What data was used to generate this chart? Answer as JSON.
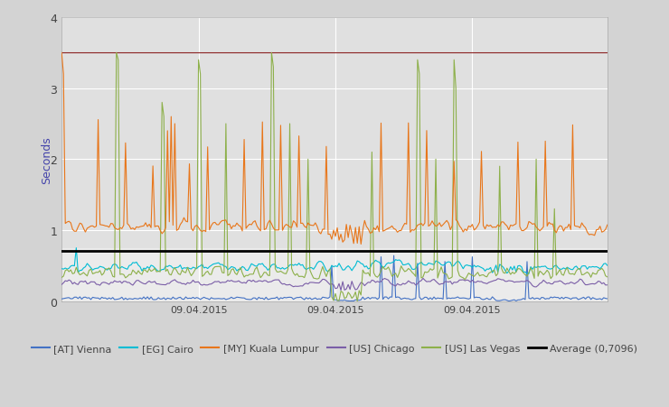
{
  "title": "",
  "ylabel": "Seconds",
  "ylim": [
    0,
    4
  ],
  "yticks": [
    0,
    1,
    2,
    3,
    4
  ],
  "average_value": 0.7096,
  "background_color": "#d3d3d3",
  "plot_bg_color_upper": "#e0e0e0",
  "plot_bg_color_lower": "#ebebeb",
  "upper_ref_color": "#8b2222",
  "series_colors": {
    "vienna": "#4472c4",
    "cairo": "#00bcd4",
    "kuala": "#e8761a",
    "chicago": "#7b5ea7",
    "vegas": "#8db04a",
    "average": "#000000"
  },
  "legend_labels": [
    "[AT] Vienna",
    "[EG] Cairo",
    "[MY] Kuala Lumpur",
    "[US] Chicago",
    "[US] Las Vegas",
    "Average (0,7096)"
  ],
  "n_points": 300,
  "x_tick_labels": [
    "09.04.2015",
    "09.04.2015",
    "09.04.2015"
  ],
  "x_tick_positions": [
    75,
    150,
    225
  ]
}
